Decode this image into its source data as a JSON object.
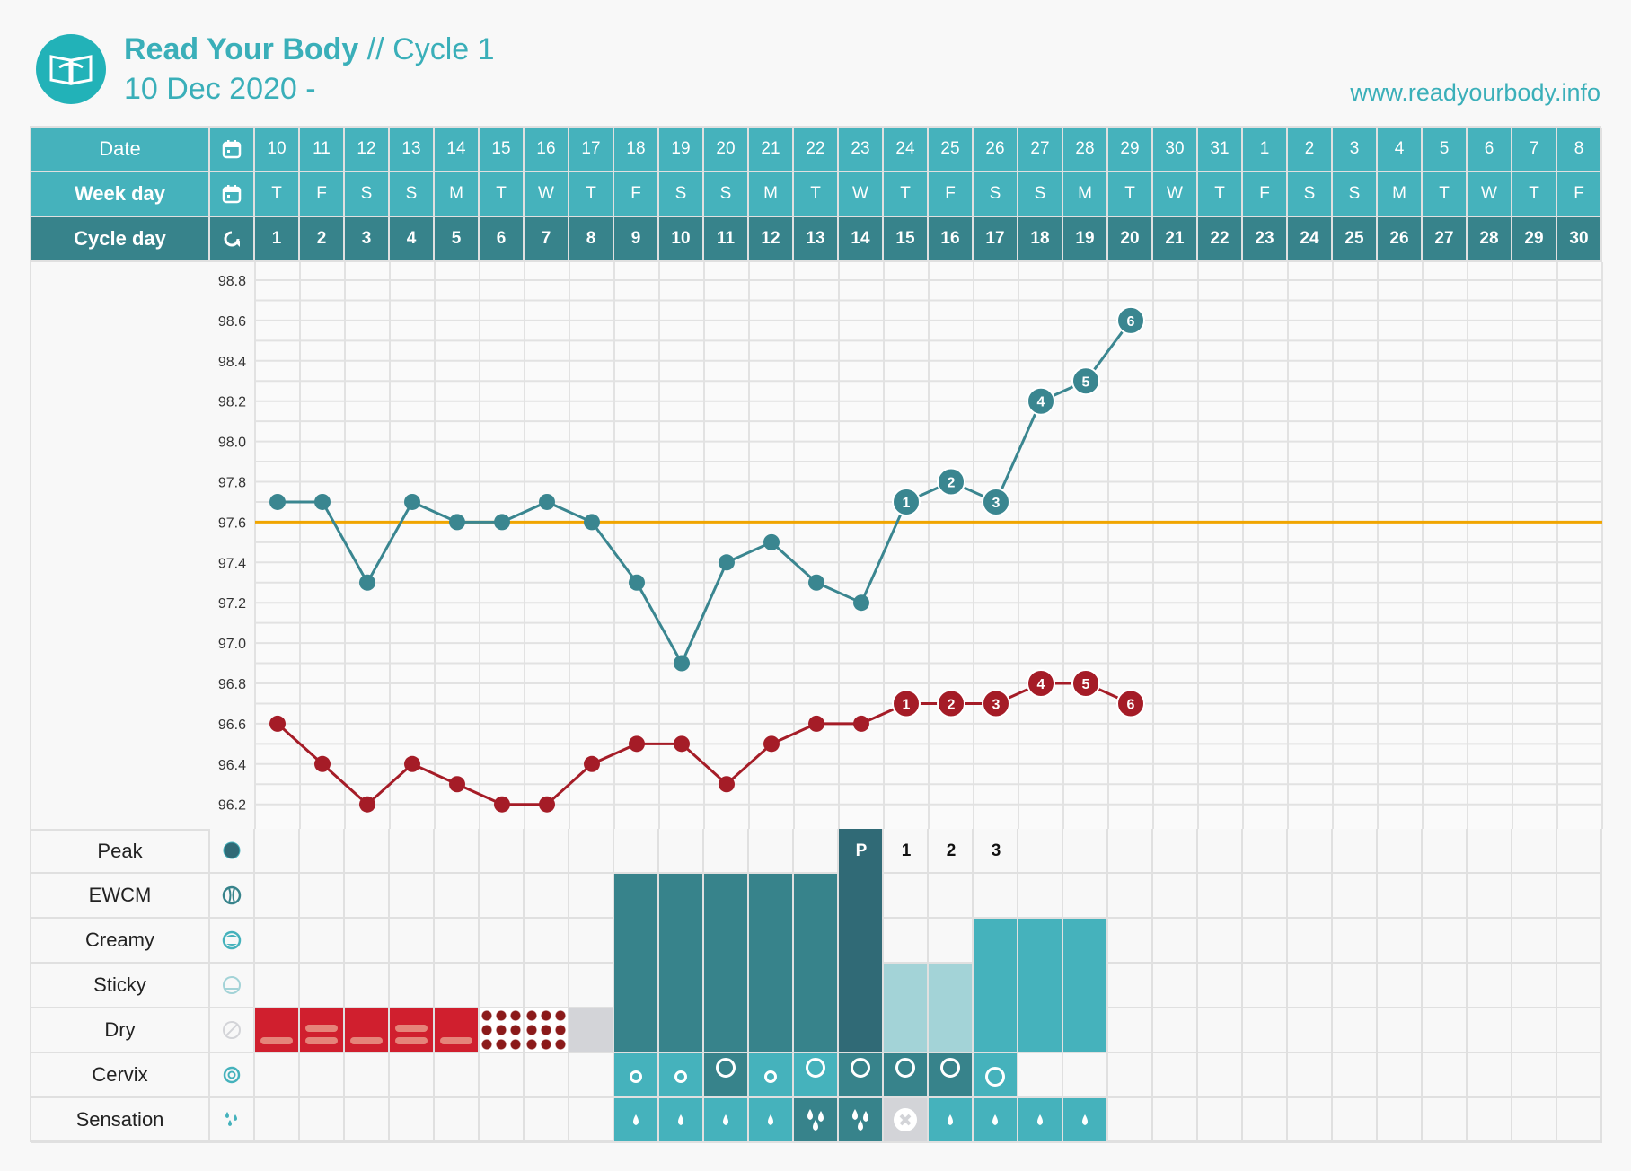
{
  "header": {
    "app_name": "Read Your Body",
    "cycle": "// Cycle 1",
    "date_range": "10 Dec 2020 -",
    "website": "www.readyourbody.info"
  },
  "table": {
    "date_label": "Date",
    "weekday_label": "Week day",
    "cycleday_label": "Cycle day",
    "dates": [
      "10",
      "11",
      "12",
      "13",
      "14",
      "15",
      "16",
      "17",
      "18",
      "19",
      "20",
      "21",
      "22",
      "23",
      "24",
      "25",
      "26",
      "27",
      "28",
      "29",
      "30",
      "31",
      "1",
      "2",
      "3",
      "4",
      "5",
      "6",
      "7",
      "8"
    ],
    "weekdays": [
      "T",
      "F",
      "S",
      "S",
      "M",
      "T",
      "W",
      "T",
      "F",
      "S",
      "S",
      "M",
      "T",
      "W",
      "T",
      "F",
      "S",
      "S",
      "M",
      "T",
      "W",
      "T",
      "F",
      "S",
      "S",
      "M",
      "T",
      "W",
      "T",
      "F"
    ],
    "cycle_days": [
      "1",
      "2",
      "3",
      "4",
      "5",
      "6",
      "7",
      "8",
      "9",
      "10",
      "11",
      "12",
      "13",
      "14",
      "15",
      "16",
      "17",
      "18",
      "19",
      "20",
      "21",
      "22",
      "23",
      "24",
      "25",
      "26",
      "27",
      "28",
      "29",
      "30"
    ]
  },
  "colors": {
    "header": "#45b2bc",
    "cycle_row": "#37838b",
    "peak": "#306a76",
    "blue_line": "#3a8690",
    "red_line": "#a51c27",
    "coverline": "#f0a500",
    "dry_red": "#d01f2e",
    "sticky": "#a3d3d7",
    "gray": "#d3d4d8"
  },
  "chart_data": {
    "type": "line",
    "ylim": [
      96.1,
      98.9
    ],
    "yticks": [
      "98.8",
      "98.6",
      "98.4",
      "98.2",
      "98.0",
      "97.8",
      "97.6",
      "97.4",
      "97.2",
      "97.0",
      "96.8",
      "96.6",
      "96.4",
      "96.2"
    ],
    "x": [
      1,
      2,
      3,
      4,
      5,
      6,
      7,
      8,
      9,
      10,
      11,
      12,
      13,
      14,
      15,
      16,
      17,
      18,
      19,
      20
    ],
    "coverline": 97.6,
    "series": [
      {
        "name": "temperature-1",
        "values": [
          97.7,
          97.7,
          97.3,
          97.7,
          97.6,
          97.6,
          97.7,
          97.6,
          97.3,
          96.9,
          97.4,
          97.5,
          97.3,
          97.2,
          97.7,
          97.8,
          97.7,
          98.2,
          98.3,
          98.6
        ],
        "labels": [
          "",
          "",
          "",
          "",
          "",
          "",
          "",
          "",
          "",
          "",
          "",
          "",
          "",
          "",
          "1",
          "2",
          "3",
          "4",
          "5",
          "6"
        ]
      },
      {
        "name": "temperature-2",
        "values": [
          96.6,
          96.4,
          96.2,
          96.4,
          96.3,
          96.2,
          96.2,
          96.4,
          96.5,
          96.5,
          96.3,
          96.5,
          96.6,
          96.6,
          96.7,
          96.7,
          96.7,
          96.8,
          96.8,
          96.7
        ],
        "labels": [
          "",
          "",
          "",
          "",
          "",
          "",
          "",
          "",
          "",
          "",
          "",
          "",
          "",
          "",
          "1",
          "2",
          "3",
          "4",
          "5",
          "6"
        ]
      }
    ]
  },
  "observations": {
    "rows": [
      "Peak",
      "EWCM",
      "Creamy",
      "Sticky",
      "Dry",
      "Cervix",
      "Sensation"
    ],
    "peak_marks": {
      "14": "P",
      "15": "1",
      "16": "2",
      "17": "3"
    },
    "mucus": [
      {
        "day": 1,
        "level": "dry",
        "pattern": "bar1"
      },
      {
        "day": 2,
        "level": "dry",
        "pattern": "bar2"
      },
      {
        "day": 3,
        "level": "dry",
        "pattern": "bar1"
      },
      {
        "day": 4,
        "level": "dry",
        "pattern": "bar2"
      },
      {
        "day": 5,
        "level": "dry",
        "pattern": "bar1"
      },
      {
        "day": 6,
        "level": "dry",
        "pattern": "dots"
      },
      {
        "day": 7,
        "level": "dry",
        "pattern": "dots"
      },
      {
        "day": 8,
        "level": "dry",
        "pattern": "gray"
      },
      {
        "day": 9,
        "level": "ewcm"
      },
      {
        "day": 10,
        "level": "ewcm"
      },
      {
        "day": 11,
        "level": "ewcm"
      },
      {
        "day": 12,
        "level": "ewcm"
      },
      {
        "day": 13,
        "level": "ewcm"
      },
      {
        "day": 14,
        "level": "peak"
      },
      {
        "day": 15,
        "level": "sticky"
      },
      {
        "day": 16,
        "level": "sticky"
      },
      {
        "day": 17,
        "level": "creamy"
      },
      {
        "day": 18,
        "level": "creamy"
      },
      {
        "day": 19,
        "level": "creamy"
      }
    ],
    "cervix": [
      {
        "day": 9,
        "dark": false,
        "open": false
      },
      {
        "day": 10,
        "dark": false,
        "open": false
      },
      {
        "day": 11,
        "dark": true,
        "open": true
      },
      {
        "day": 12,
        "dark": false,
        "open": false
      },
      {
        "day": 13,
        "dark": false,
        "open": true
      },
      {
        "day": 14,
        "dark": true,
        "open": true
      },
      {
        "day": 15,
        "dark": true,
        "open": true
      },
      {
        "day": 16,
        "dark": true,
        "open": true
      },
      {
        "day": 17,
        "dark": false,
        "open": "low"
      }
    ],
    "sensation": [
      {
        "day": 9,
        "type": "wet"
      },
      {
        "day": 10,
        "type": "wet"
      },
      {
        "day": 11,
        "type": "wet"
      },
      {
        "day": 12,
        "type": "wet"
      },
      {
        "day": 13,
        "type": "very-wet"
      },
      {
        "day": 14,
        "type": "very-wet"
      },
      {
        "day": 15,
        "type": "none"
      },
      {
        "day": 16,
        "type": "wet"
      },
      {
        "day": 17,
        "type": "wet"
      },
      {
        "day": 18,
        "type": "wet"
      },
      {
        "day": 19,
        "type": "wet"
      }
    ]
  }
}
